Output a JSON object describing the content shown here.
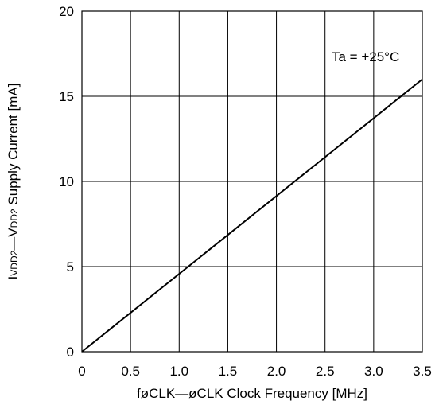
{
  "chart_data": {
    "type": "line",
    "x": [
      0,
      3.5
    ],
    "series": [
      {
        "values": [
          0,
          16
        ]
      }
    ],
    "xlim": [
      0,
      3.5
    ],
    "ylim": [
      0,
      20
    ],
    "xticks": [
      "0",
      "0.5",
      "1.0",
      "1.5",
      "2.0",
      "2.5",
      "3.0",
      "3.5"
    ],
    "yticks": [
      "0",
      "5",
      "10",
      "15",
      "20"
    ],
    "xlabel": "føCLK—øCLK Clock Frequency [MHz]",
    "ylabel": {
      "prefix": "I",
      "sub1": "VDD2",
      "middle": "—V",
      "sub2": "DD2",
      "suffix": " Supply Current [mA]"
    },
    "annotation": "Ta = +25°C",
    "grid": true,
    "colors": {
      "line": "#000000",
      "grid": "#000000",
      "background": "#ffffff"
    }
  }
}
